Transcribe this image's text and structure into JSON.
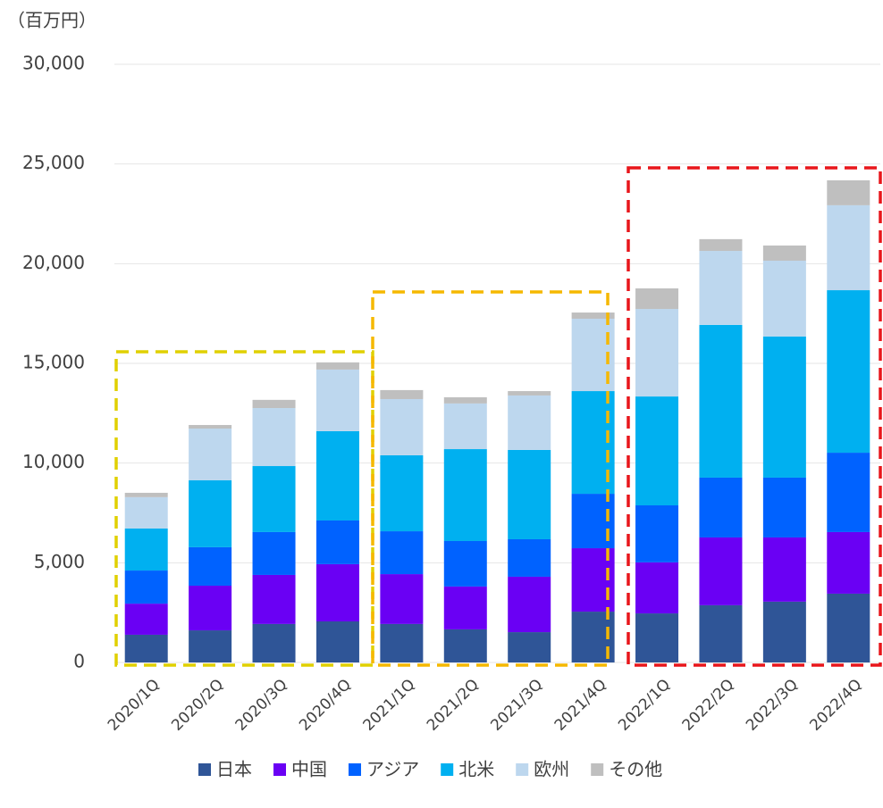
{
  "chart_data": {
    "type": "stacked-bar",
    "unit_label": "（百万円）",
    "categories": [
      "2020/1Q",
      "2020/2Q",
      "2020/3Q",
      "2020/4Q",
      "2021/1Q",
      "2021/2Q",
      "2021/3Q",
      "2021/4Q",
      "2022/1Q",
      "2022/2Q",
      "2022/3Q",
      "2022/4Q"
    ],
    "series": [
      {
        "name": "日本",
        "color": "#2f5597",
        "values": [
          1390,
          1610,
          1930,
          2060,
          1930,
          1660,
          1520,
          2550,
          2460,
          2870,
          3050,
          3450
        ]
      },
      {
        "name": "中国",
        "color": "#6a00f4",
        "values": [
          1560,
          2240,
          2460,
          2870,
          2500,
          2150,
          2780,
          3180,
          2560,
          3400,
          3220,
          3090
        ]
      },
      {
        "name": "アジア",
        "color": "#0062ff",
        "values": [
          1660,
          1930,
          2150,
          2190,
          2150,
          2280,
          1880,
          2730,
          2860,
          3000,
          3000,
          3980
        ]
      },
      {
        "name": "北米",
        "color": "#00b0f0",
        "values": [
          2110,
          3360,
          3310,
          4480,
          3810,
          4610,
          4480,
          5150,
          5460,
          7660,
          7080,
          8150
        ]
      },
      {
        "name": "欧州",
        "color": "#bdd7ee",
        "values": [
          1570,
          2590,
          2910,
          3090,
          2820,
          2290,
          2730,
          3630,
          4390,
          3710,
          3800,
          4260
        ]
      },
      {
        "name": "その他",
        "color": "#bfbfbf",
        "values": [
          220,
          180,
          410,
          360,
          450,
          310,
          220,
          310,
          1030,
          590,
          760,
          1250
        ]
      }
    ],
    "ylim": [
      0,
      30000
    ],
    "yticks": [
      0,
      {
        "value": 5000,
        "label": "5,000"
      },
      {
        "value": 10000,
        "label": "10,000"
      },
      {
        "value": 15000,
        "label": "15,000"
      },
      {
        "value": 20000,
        "label": "20,000"
      },
      {
        "value": 25000,
        "label": "25,000"
      },
      {
        "value": 30000,
        "label": "30,000"
      }
    ],
    "grid": true
  }
}
